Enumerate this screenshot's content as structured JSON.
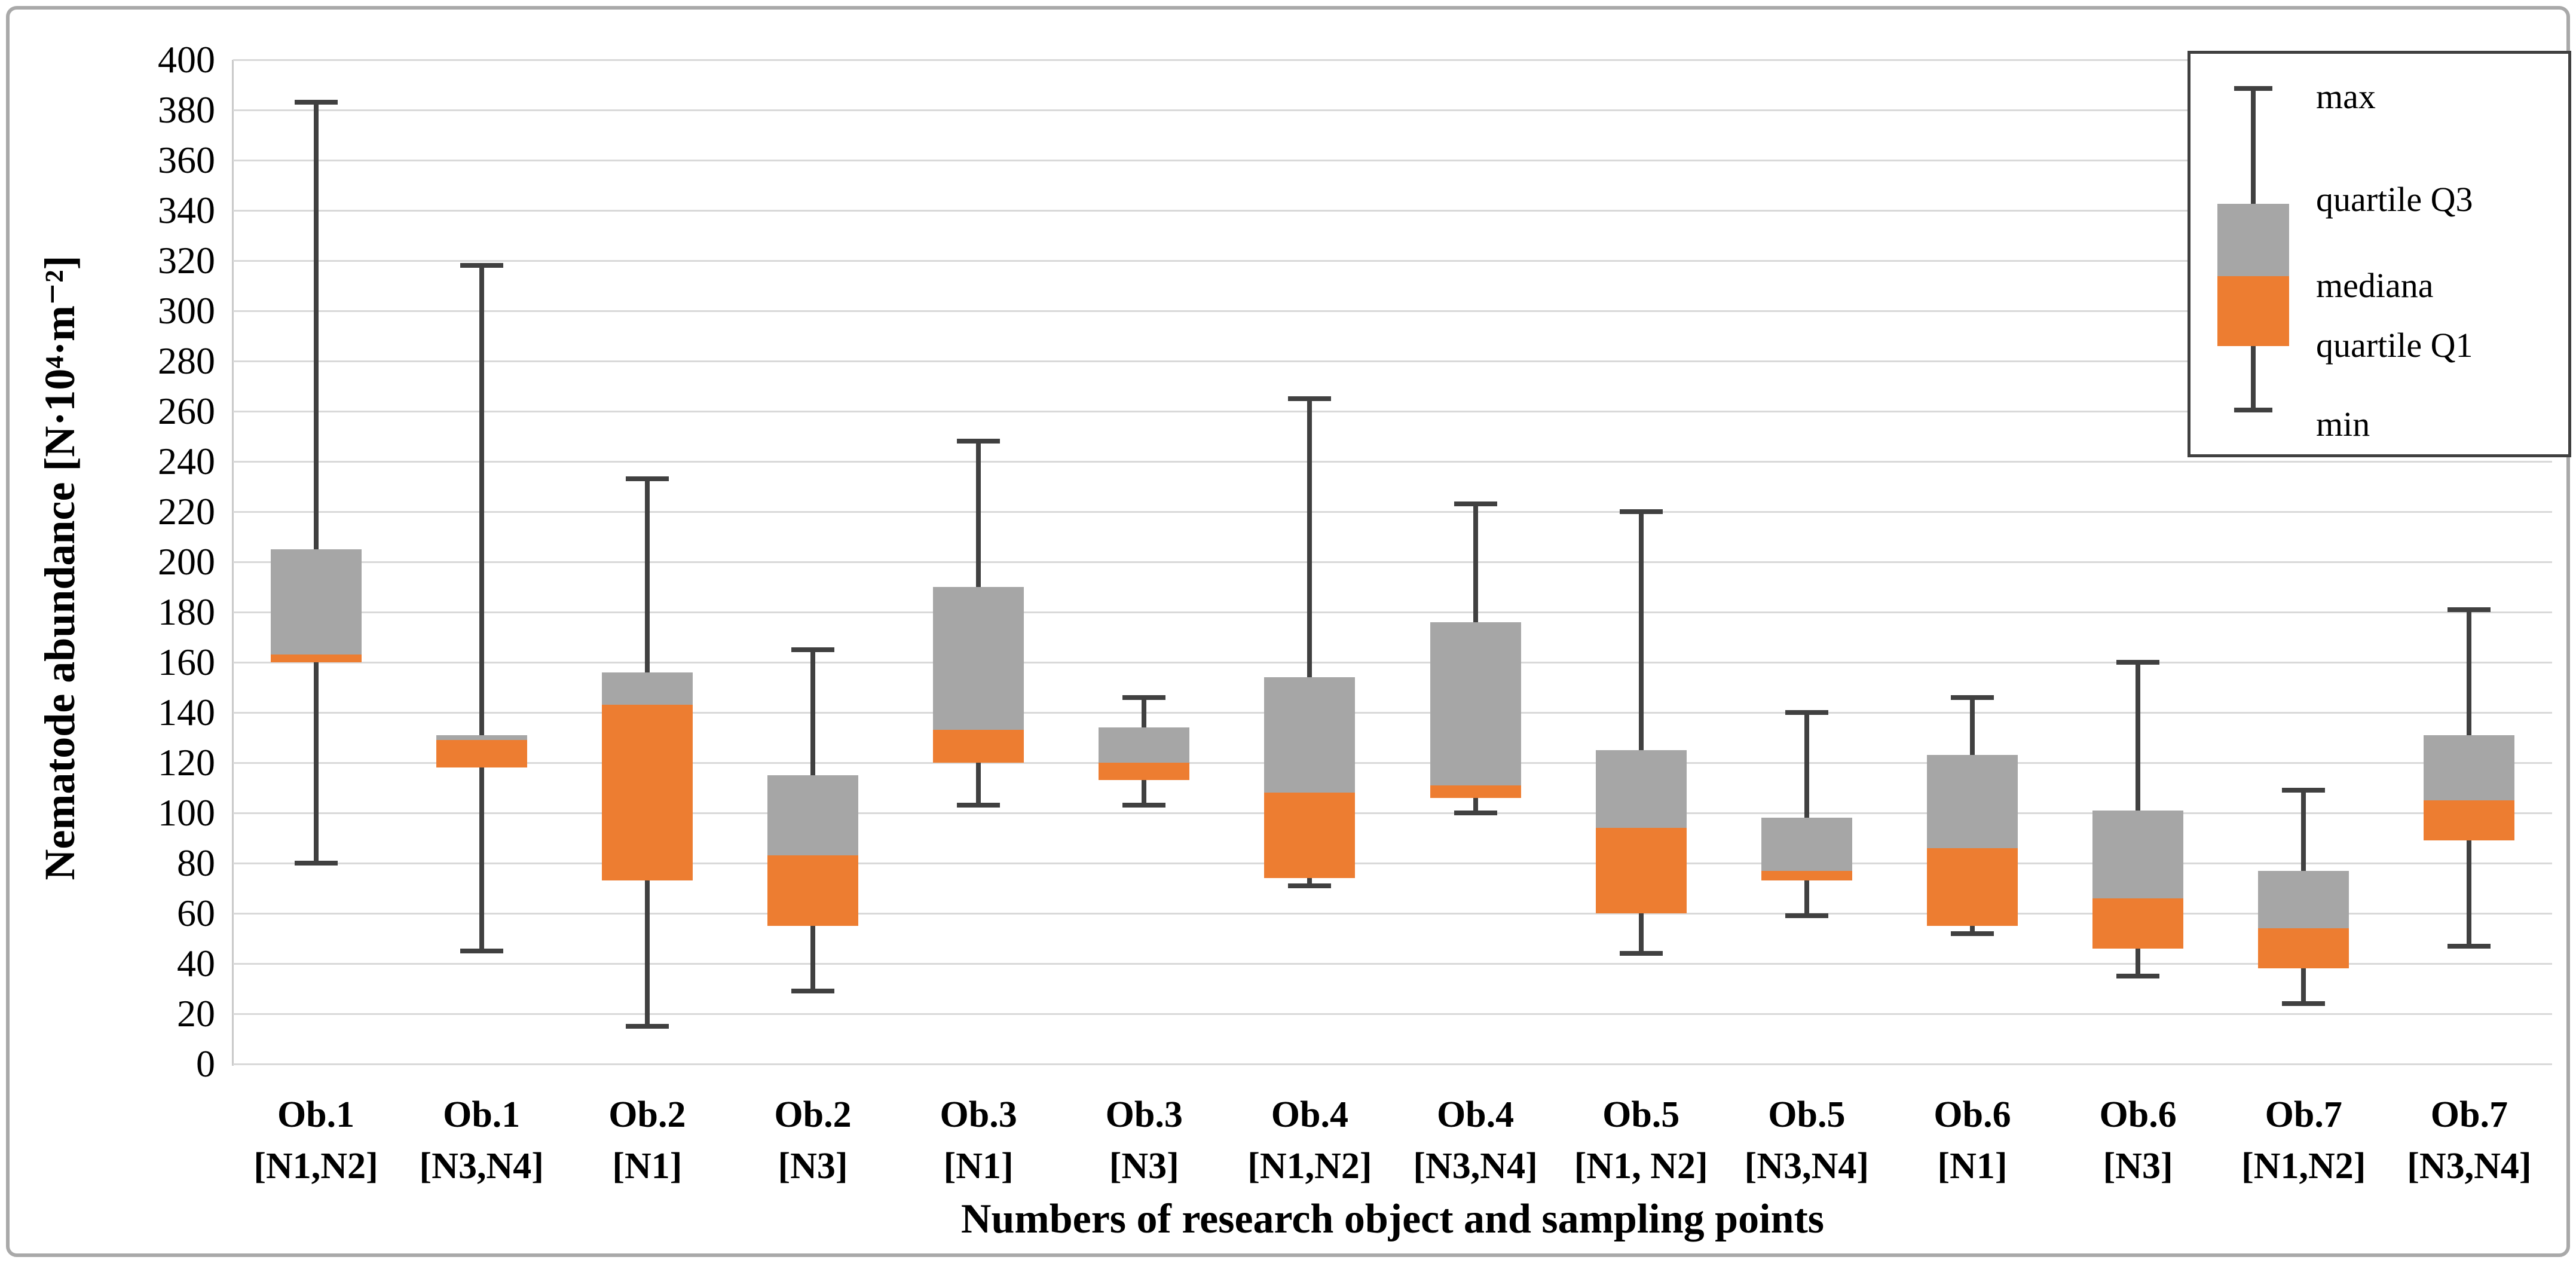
{
  "figure": {
    "background": "#ffffff",
    "frame_color": "#a9a9a9"
  },
  "chart_data": {
    "type": "box",
    "title": "",
    "xlabel": "Numbers of research object and sampling points",
    "ylabel": "Nematode abundance [N·10⁴·m⁻²]",
    "ylim": [
      0,
      400
    ],
    "ytick_step": 20,
    "yticks": [
      400,
      380,
      360,
      340,
      320,
      300,
      280,
      260,
      240,
      220,
      200,
      180,
      160,
      140,
      120,
      100,
      80,
      60,
      40,
      20,
      0
    ],
    "grid": true,
    "legend_position": "top-right",
    "legend_labels": {
      "max": "max",
      "q3": "quartile Q3",
      "median": "mediana",
      "q1": "quartile Q1",
      "min": "min"
    },
    "colors": {
      "upper_box": "#a6a6a6",
      "lower_box": "#ed7d31",
      "whisker": "#404040",
      "gridline": "#d9d9d9",
      "text": "#000000"
    },
    "boxes": [
      {
        "label_line1": "Ob.1",
        "label_line2": "[N1,N2]",
        "min": 80,
        "q1": 160,
        "median": 163,
        "q3": 205,
        "max": 383
      },
      {
        "label_line1": "Ob.1",
        "label_line2": "[N3,N4]",
        "min": 45,
        "q1": 118,
        "median": 129,
        "q3": 131,
        "max": 318
      },
      {
        "label_line1": "Ob.2",
        "label_line2": "[N1]",
        "min": 15,
        "q1": 73,
        "median": 143,
        "q3": 156,
        "max": 233
      },
      {
        "label_line1": "Ob.2",
        "label_line2": "[N3]",
        "min": 29,
        "q1": 55,
        "median": 83,
        "q3": 115,
        "max": 165
      },
      {
        "label_line1": "Ob.3",
        "label_line2": "[N1]",
        "min": 103,
        "q1": 120,
        "median": 133,
        "q3": 190,
        "max": 248
      },
      {
        "label_line1": "Ob.3",
        "label_line2": "[N3]",
        "min": 103,
        "q1": 113,
        "median": 120,
        "q3": 134,
        "max": 146
      },
      {
        "label_line1": "Ob.4",
        "label_line2": "[N1,N2]",
        "min": 71,
        "q1": 74,
        "median": 108,
        "q3": 154,
        "max": 265
      },
      {
        "label_line1": "Ob.4",
        "label_line2": "[N3,N4]",
        "min": 100,
        "q1": 106,
        "median": 111,
        "q3": 176,
        "max": 223
      },
      {
        "label_line1": "Ob.5",
        "label_line2": "[N1, N2]",
        "min": 44,
        "q1": 60,
        "median": 94,
        "q3": 125,
        "max": 220
      },
      {
        "label_line1": "Ob.5",
        "label_line2": "[N3,N4]",
        "min": 59,
        "q1": 73,
        "median": 77,
        "q3": 98,
        "max": 140
      },
      {
        "label_line1": "Ob.6",
        "label_line2": "[N1]",
        "min": 52,
        "q1": 55,
        "median": 86,
        "q3": 123,
        "max": 146
      },
      {
        "label_line1": "Ob.6",
        "label_line2": "[N3]",
        "min": 35,
        "q1": 46,
        "median": 66,
        "q3": 101,
        "max": 160
      },
      {
        "label_line1": "Ob.7",
        "label_line2": "[N1,N2]",
        "min": 24,
        "q1": 38,
        "median": 54,
        "q3": 77,
        "max": 109
      },
      {
        "label_line1": "Ob.7",
        "label_line2": "[N3,N4]",
        "min": 47,
        "q1": 89,
        "median": 105,
        "q3": 131,
        "max": 181
      }
    ]
  }
}
